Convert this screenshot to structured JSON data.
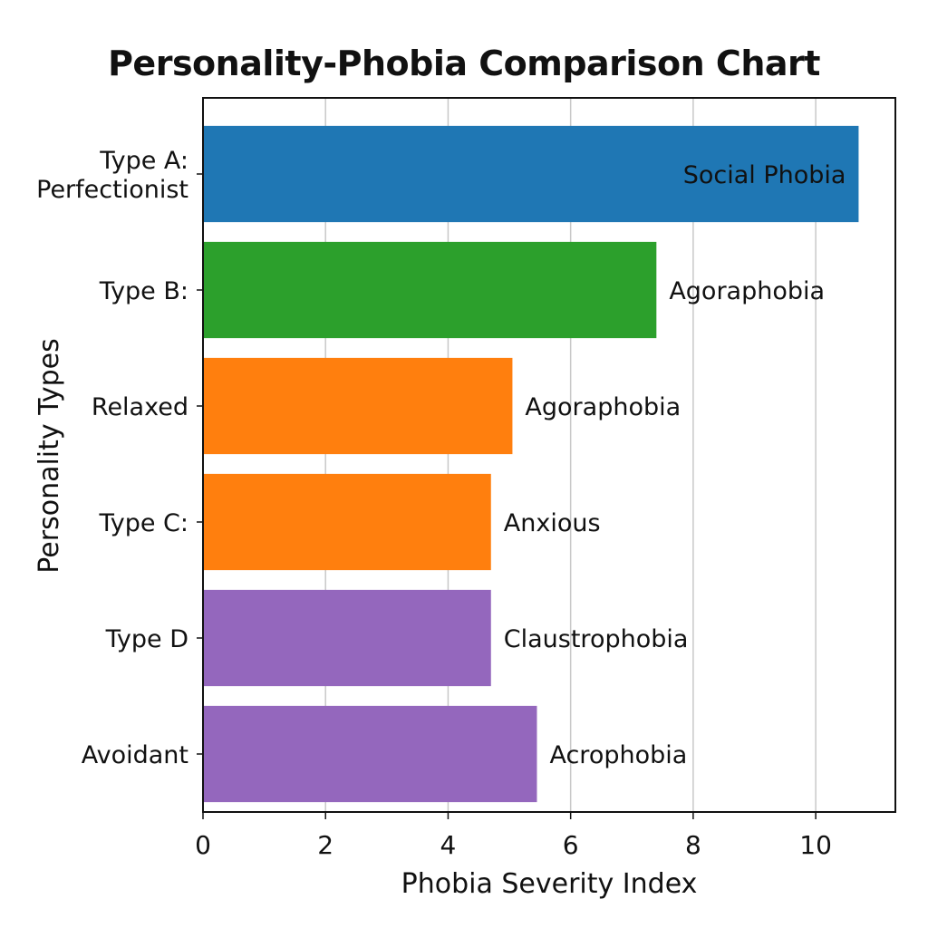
{
  "chart_data": {
    "type": "bar",
    "orientation": "horizontal",
    "title": "Personality-Phobia Comparison Chart",
    "xlabel": "Phobia Severity Index",
    "ylabel": "Personality Types",
    "xlim": [
      0,
      11.3
    ],
    "xticks": [
      0,
      2,
      4,
      6,
      8,
      10
    ],
    "grid": "vertical",
    "categories": [
      [
        "Type A:",
        "Perfectionist"
      ],
      [
        "Type B:"
      ],
      [
        "Relaxed"
      ],
      [
        "Type C:"
      ],
      [
        "Type D"
      ],
      [
        "Avoidant"
      ]
    ],
    "values": [
      10.7,
      7.4,
      5.05,
      4.7,
      4.7,
      5.45
    ],
    "bar_labels": [
      "Social Phobia",
      "Agoraphobia",
      "Agoraphobia",
      "Anxious",
      "Claustrophobia",
      "Acrophobia"
    ],
    "colors": [
      "#1f77b4",
      "#2ca02c",
      "#ff7f0e",
      "#ff7f0e",
      "#9467bd",
      "#9467bd"
    ]
  }
}
